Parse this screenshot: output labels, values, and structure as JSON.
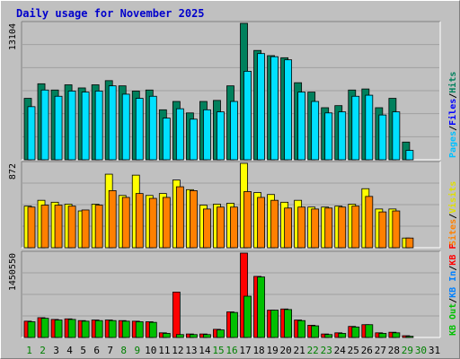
{
  "chart_data": {
    "type": "bar",
    "title": "Daily usage for November 2025",
    "x": [
      "1",
      "2",
      "3",
      "4",
      "5",
      "6",
      "7",
      "8",
      "9",
      "10",
      "11",
      "12",
      "13",
      "14",
      "15",
      "16",
      "17",
      "18",
      "19",
      "20",
      "21",
      "22",
      "23",
      "24",
      "25",
      "26",
      "27",
      "28",
      "29",
      "30",
      "31"
    ],
    "weekend_days": [
      "1",
      "2",
      "8",
      "9",
      "15",
      "16",
      "22",
      "23",
      "29",
      "30"
    ],
    "panels": [
      {
        "id": "hits",
        "max_label": "13104",
        "ymax": 13104,
        "legend": [
          {
            "text": "Hits",
            "color": "#00805c"
          },
          {
            "text": "/",
            "color": "#000000"
          },
          {
            "text": "Files",
            "color": "#0000ff"
          },
          {
            "text": "/",
            "color": "#000000"
          },
          {
            "text": "Pages",
            "color": "#00c0ff"
          }
        ],
        "series": [
          {
            "name": "Hits",
            "color": "#00805c",
            "values": [
              5900,
              7300,
              6700,
              7200,
              6900,
              7200,
              7600,
              7100,
              6600,
              6700,
              4800,
              5600,
              4500,
              5600,
              5700,
              7100,
              13104,
              10500,
              10000,
              9800,
              7400,
              6500,
              5000,
              5200,
              6700,
              6800,
              5000,
              5900,
              1700,
              0,
              0
            ]
          },
          {
            "name": "Pages",
            "color": "#00e0ff",
            "values": [
              5100,
              6700,
              6100,
              6600,
              6500,
              6600,
              7100,
              6300,
              5900,
              6100,
              4000,
              4900,
              3900,
              4800,
              4600,
              5600,
              8500,
              10200,
              9900,
              9600,
              6500,
              5600,
              4500,
              4600,
              6100,
              6200,
              4300,
              4600,
              900,
              0,
              0
            ]
          }
        ]
      },
      {
        "id": "visits",
        "max_label": "872",
        "ymax": 872,
        "legend": [
          {
            "text": "Visits",
            "color": "#e0e000"
          },
          {
            "text": "/",
            "color": "#000000"
          },
          {
            "text": "Sites",
            "color": "#ff8000"
          }
        ],
        "series": [
          {
            "name": "Visits",
            "color": "#ffff00",
            "values": [
              430,
              490,
              470,
              450,
              380,
              450,
              760,
              540,
              750,
              540,
              560,
              700,
              600,
              440,
              450,
              460,
              872,
              570,
              550,
              470,
              490,
              420,
              420,
              430,
              450,
              610,
              400,
              400,
              100,
              0,
              0
            ]
          },
          {
            "name": "Sites",
            "color": "#ff8000",
            "values": [
              420,
              440,
              440,
              430,
              390,
              440,
              590,
              520,
              560,
              510,
              520,
              630,
              590,
              400,
              420,
              420,
              580,
              520,
              490,
              410,
              420,
              400,
              410,
              420,
              430,
              530,
              370,
              380,
              100,
              0,
              0
            ]
          }
        ]
      },
      {
        "id": "kbytes",
        "max_label": "1450550",
        "ymax": 1450550,
        "legend": [
          {
            "text": "KB F",
            "color": "#ff0000"
          },
          {
            "text": "/",
            "color": "#000000"
          },
          {
            "text": "KB In",
            "color": "#0080ff"
          },
          {
            "text": "/",
            "color": "#000000"
          },
          {
            "text": "KB Out",
            "color": "#00c000"
          }
        ],
        "series": [
          {
            "name": "KB F",
            "color": "#ff0000",
            "values": [
              280000,
              340000,
              310000,
              320000,
              290000,
              300000,
              300000,
              290000,
              280000,
              270000,
              80000,
              780000,
              60000,
              60000,
              140000,
              440000,
              1450550,
              1050000,
              470000,
              490000,
              300000,
              210000,
              60000,
              80000,
              190000,
              220000,
              80000,
              90000,
              30000,
              0,
              0
            ]
          },
          {
            "name": "KB Out",
            "color": "#00c000",
            "values": [
              270000,
              330000,
              300000,
              310000,
              280000,
              290000,
              290000,
              280000,
              270000,
              260000,
              70000,
              50000,
              50000,
              50000,
              130000,
              430000,
              710000,
              1040000,
              470000,
              480000,
              290000,
              200000,
              50000,
              70000,
              180000,
              220000,
              70000,
              80000,
              20000,
              0,
              0
            ]
          }
        ]
      }
    ]
  }
}
